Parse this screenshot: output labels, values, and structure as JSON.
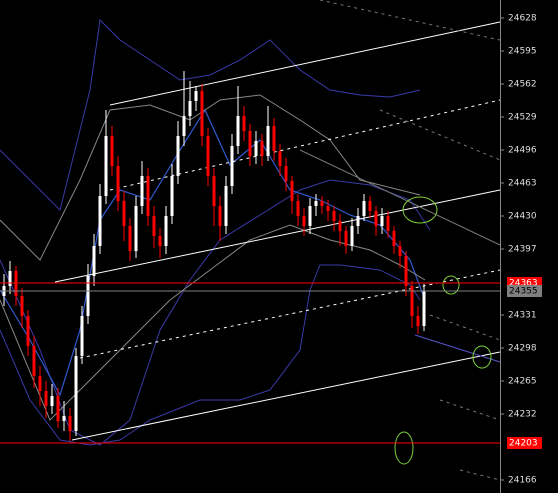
{
  "chart_data": {
    "type": "candlestick",
    "ylim": [
      24153,
      24646
    ],
    "yticks": [
      24628,
      24595,
      24562,
      24529,
      24496,
      24463,
      24430,
      24397,
      24331,
      24298,
      24265,
      24232,
      24166
    ],
    "up_color": "#ffffff",
    "down_color": "#ff0000",
    "price_lines": [
      {
        "value": 24363,
        "color": "#ff0000"
      },
      {
        "value": 24355,
        "color": "#808080"
      },
      {
        "value": 24203,
        "color": "#ff0000"
      }
    ],
    "open": [
      24350,
      24360,
      24375,
      24350,
      24330,
      24300,
      24270,
      24255,
      24240,
      24250,
      24225,
      24230,
      24215,
      24290,
      24330,
      24370,
      24400,
      24450,
      24510,
      24480,
      24445,
      24420,
      24395,
      24440,
      24470,
      24430,
      24410,
      24400,
      24430,
      24470,
      24510,
      24530,
      24545,
      24555,
      24510,
      24470,
      24440,
      24420,
      24460,
      24500,
      24530,
      24515,
      24490,
      24505,
      24490,
      24520,
      24495,
      24480,
      24465,
      24445,
      24430,
      24420,
      24440,
      24445,
      24440,
      24435,
      24425,
      24415,
      24400,
      24420,
      24430,
      24445,
      24435,
      24420,
      24430,
      24415,
      24400,
      24390,
      24360,
      24330,
      24320
    ],
    "high": [
      24372,
      24385,
      24380,
      24358,
      24336,
      24310,
      24280,
      24265,
      24262,
      24258,
      24245,
      24238,
      24298,
      24340,
      24382,
      24412,
      24462,
      24536,
      24520,
      24490,
      24455,
      24428,
      24450,
      24485,
      24478,
      24440,
      24418,
      24440,
      24482,
      24525,
      24575,
      24565,
      24560,
      24562,
      24518,
      24478,
      24450,
      24470,
      24512,
      24560,
      24540,
      24522,
      24515,
      24512,
      24540,
      24528,
      24502,
      24488,
      24470,
      24452,
      24438,
      24448,
      24452,
      24450,
      24446,
      24440,
      24432,
      24420,
      24428,
      24438,
      24452,
      24450,
      24440,
      24438,
      24435,
      24420,
      24405,
      24395,
      24365,
      24340,
      24362
    ],
    "low": [
      24340,
      24352,
      24340,
      24318,
      24290,
      24258,
      24240,
      24228,
      24232,
      24218,
      24215,
      24205,
      24210,
      24282,
      24322,
      24360,
      24392,
      24442,
      24470,
      24435,
      24405,
      24385,
      24388,
      24432,
      24420,
      24398,
      24388,
      24392,
      24422,
      24462,
      24500,
      24520,
      24535,
      24500,
      24460,
      24420,
      24405,
      24412,
      24452,
      24492,
      24505,
      24480,
      24482,
      24480,
      24485,
      24485,
      24470,
      24455,
      24432,
      24420,
      24410,
      24412,
      24430,
      24432,
      24425,
      24415,
      24400,
      24392,
      24395,
      24412,
      24425,
      24428,
      24410,
      24412,
      24408,
      24392,
      24378,
      24350,
      24318,
      24312,
      24315
    ],
    "close": [
      24360,
      24375,
      24350,
      24330,
      24300,
      24270,
      24255,
      24240,
      24250,
      24225,
      24230,
      24215,
      24290,
      24330,
      24370,
      24400,
      24450,
      24510,
      24480,
      24445,
      24420,
      24395,
      24440,
      24470,
      24430,
      24410,
      24400,
      24430,
      24470,
      24510,
      24530,
      24545,
      24555,
      24510,
      24470,
      24440,
      24420,
      24460,
      24500,
      24530,
      24515,
      24490,
      24505,
      24490,
      24520,
      24495,
      24480,
      24465,
      24445,
      24430,
      24420,
      24440,
      24445,
      24440,
      24435,
      24425,
      24415,
      24400,
      24420,
      24430,
      24445,
      24435,
      24420,
      24430,
      24415,
      24400,
      24390,
      24360,
      24330,
      24320,
      24355
    ]
  }
}
